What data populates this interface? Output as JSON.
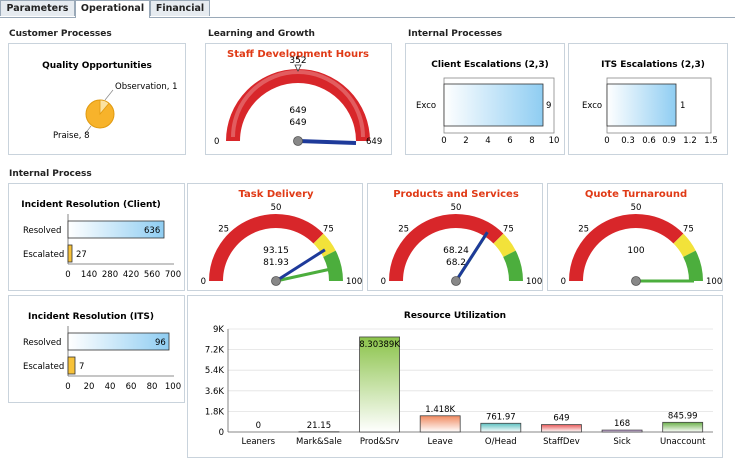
{
  "tabs": [
    {
      "label": "Parameters",
      "active": false
    },
    {
      "label": "Operational",
      "active": true
    },
    {
      "label": "Financial",
      "active": false
    }
  ],
  "sections": {
    "customer": "Customer Processes",
    "learning": "Learning and Growth",
    "internal_processes": "Internal Processes",
    "internal_process": "Internal Process"
  },
  "colors": {
    "gauge_red": "#d8262a",
    "gauge_yellow": "#f2e23a",
    "gauge_green": "#4cae3d",
    "title_red": "#e03a16",
    "bar_blue": "#9fd2f3"
  },
  "quality": {
    "title": "Quality Opportunities",
    "label_observation": "Observation, 1",
    "label_praise": "Praise, 8"
  },
  "staff_gauge": {
    "title": "Staff Development Hours",
    "target": "352",
    "value1": "649",
    "value2": "649",
    "min": "0",
    "max": "649"
  },
  "client_esc": {
    "title": "Client Escalations (2,3)",
    "label": "Exco",
    "value_label": "9",
    "ticks": [
      "0",
      "2",
      "4",
      "6",
      "8",
      "10"
    ]
  },
  "its_esc": {
    "title": "ITS Escalations (2,3)",
    "label": "Exco",
    "value_label": "1",
    "ticks": [
      "0",
      "0.3",
      "0.6",
      "0.9",
      "1.2",
      "1.5"
    ]
  },
  "incident_client": {
    "title": "Incident Resolution (Client)",
    "rows": [
      {
        "label": "Resolved",
        "value": "636"
      },
      {
        "label": "Escalated",
        "value": "27"
      }
    ],
    "ticks": [
      "0",
      "140",
      "280",
      "420",
      "560",
      "700"
    ]
  },
  "incident_its": {
    "title": "Incident Resolution (ITS)",
    "rows": [
      {
        "label": "Resolved",
        "value": "96"
      },
      {
        "label": "Escalated",
        "value": "7"
      }
    ],
    "ticks": [
      "0",
      "20",
      "40",
      "60",
      "80",
      "100"
    ]
  },
  "gauges": [
    {
      "title": "Task Delivery",
      "min": "0",
      "mid": "50",
      "t25": "25",
      "t75": "75",
      "max": "100",
      "v1": "93.15",
      "v2": "81.93"
    },
    {
      "title": "Products and Services",
      "min": "0",
      "mid": "50",
      "t25": "25",
      "t75": "75",
      "max": "100",
      "v1": "68.24",
      "v2": "68.2"
    },
    {
      "title": "Quote Turnaround",
      "min": "0",
      "mid": "50",
      "t25": "25",
      "t75": "75",
      "max": "100",
      "v1": "100",
      "v2": ""
    }
  ],
  "chart_data": [
    {
      "type": "bar",
      "title": "Staff Development Hours",
      "gauge": true,
      "min": 0,
      "max": 649,
      "target": 352,
      "values": [
        649,
        649
      ]
    },
    {
      "type": "bar",
      "title": "Client Escalations (2,3)",
      "categories": [
        "Exco"
      ],
      "values": [
        9
      ],
      "xlim": [
        0,
        10
      ]
    },
    {
      "type": "bar",
      "title": "ITS Escalations (2,3)",
      "categories": [
        "Exco"
      ],
      "values": [
        1
      ],
      "xlim": [
        0,
        1.5
      ]
    },
    {
      "type": "bar",
      "title": "Incident Resolution (Client)",
      "categories": [
        "Resolved",
        "Escalated"
      ],
      "values": [
        636,
        27
      ],
      "xlim": [
        0,
        700
      ]
    },
    {
      "type": "bar",
      "title": "Incident Resolution (ITS)",
      "categories": [
        "Resolved",
        "Escalated"
      ],
      "values": [
        96,
        7
      ],
      "xlim": [
        0,
        100
      ]
    },
    {
      "type": "pie",
      "title": "Quality Opportunities",
      "categories": [
        "Observation",
        "Praise"
      ],
      "values": [
        1,
        8
      ]
    },
    {
      "type": "bar",
      "title": "Task Delivery",
      "gauge": true,
      "min": 0,
      "max": 100,
      "values": [
        93.15,
        81.93
      ]
    },
    {
      "type": "bar",
      "title": "Products and Services",
      "gauge": true,
      "min": 0,
      "max": 100,
      "values": [
        68.24,
        68.2
      ]
    },
    {
      "type": "bar",
      "title": "Quote Turnaround",
      "gauge": true,
      "min": 0,
      "max": 100,
      "values": [
        100
      ]
    },
    {
      "type": "bar",
      "title": "Resource Utilization",
      "categories": [
        "Leaners",
        "Mark&Sale",
        "Prod&Srv",
        "Leave",
        "O/Head",
        "StaffDev",
        "Sick",
        "Unaccount"
      ],
      "values": [
        0,
        21.15,
        8303.89,
        1418,
        761.97,
        649,
        168,
        845.99
      ],
      "value_labels": [
        "0",
        "21.15",
        "8.30389K",
        "1.418K",
        "761.97",
        "649",
        "168",
        "845.99"
      ],
      "colors": [
        "#cfcfcf",
        "#d9d9d9",
        "#8bc34a",
        "#f08a60",
        "#5bc0c0",
        "#e85a5a",
        "#b07ad0",
        "#6bb04a"
      ],
      "ylim": [
        0,
        9000
      ],
      "yticks": [
        "0",
        "1.8K",
        "3.6K",
        "5.4K",
        "7.2K",
        "9K"
      ]
    }
  ]
}
